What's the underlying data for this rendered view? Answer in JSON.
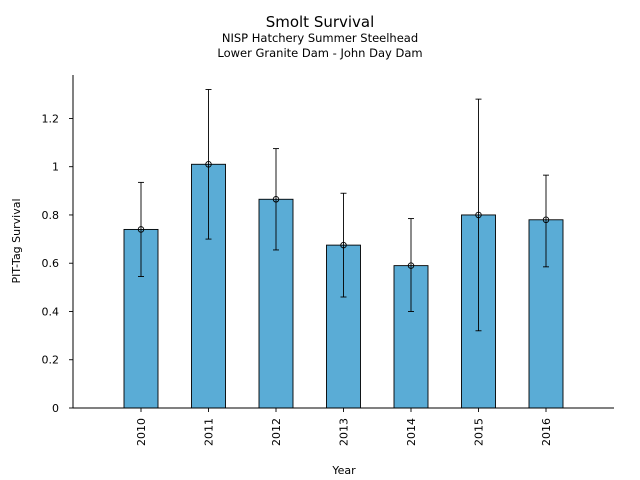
{
  "chart_data": {
    "type": "bar",
    "title": "Smolt Survival",
    "subtitle_lines": [
      "NISP Hatchery Summer Steelhead",
      "Lower Granite Dam - John Day Dam"
    ],
    "xlabel": "Year",
    "ylabel": "PIT-Tag Survival",
    "categories": [
      "2010",
      "2011",
      "2012",
      "2013",
      "2014",
      "2015",
      "2016"
    ],
    "values": [
      0.74,
      1.01,
      0.865,
      0.675,
      0.59,
      0.8,
      0.78
    ],
    "error_low": [
      0.545,
      0.7,
      0.655,
      0.46,
      0.4,
      0.32,
      0.585
    ],
    "error_high": [
      0.935,
      1.32,
      1.075,
      0.89,
      0.785,
      1.28,
      0.965
    ],
    "ylim": [
      0,
      1.38
    ],
    "yticks": [
      0,
      0.2,
      0.4,
      0.6,
      0.8,
      1,
      1.2
    ],
    "ytick_labels": [
      "0",
      "0.2",
      "0.4",
      "0.6",
      "0.8",
      "1",
      "1.2"
    ],
    "grid": false,
    "bar_color": "#5aacd6",
    "edge_color": "#000000"
  }
}
